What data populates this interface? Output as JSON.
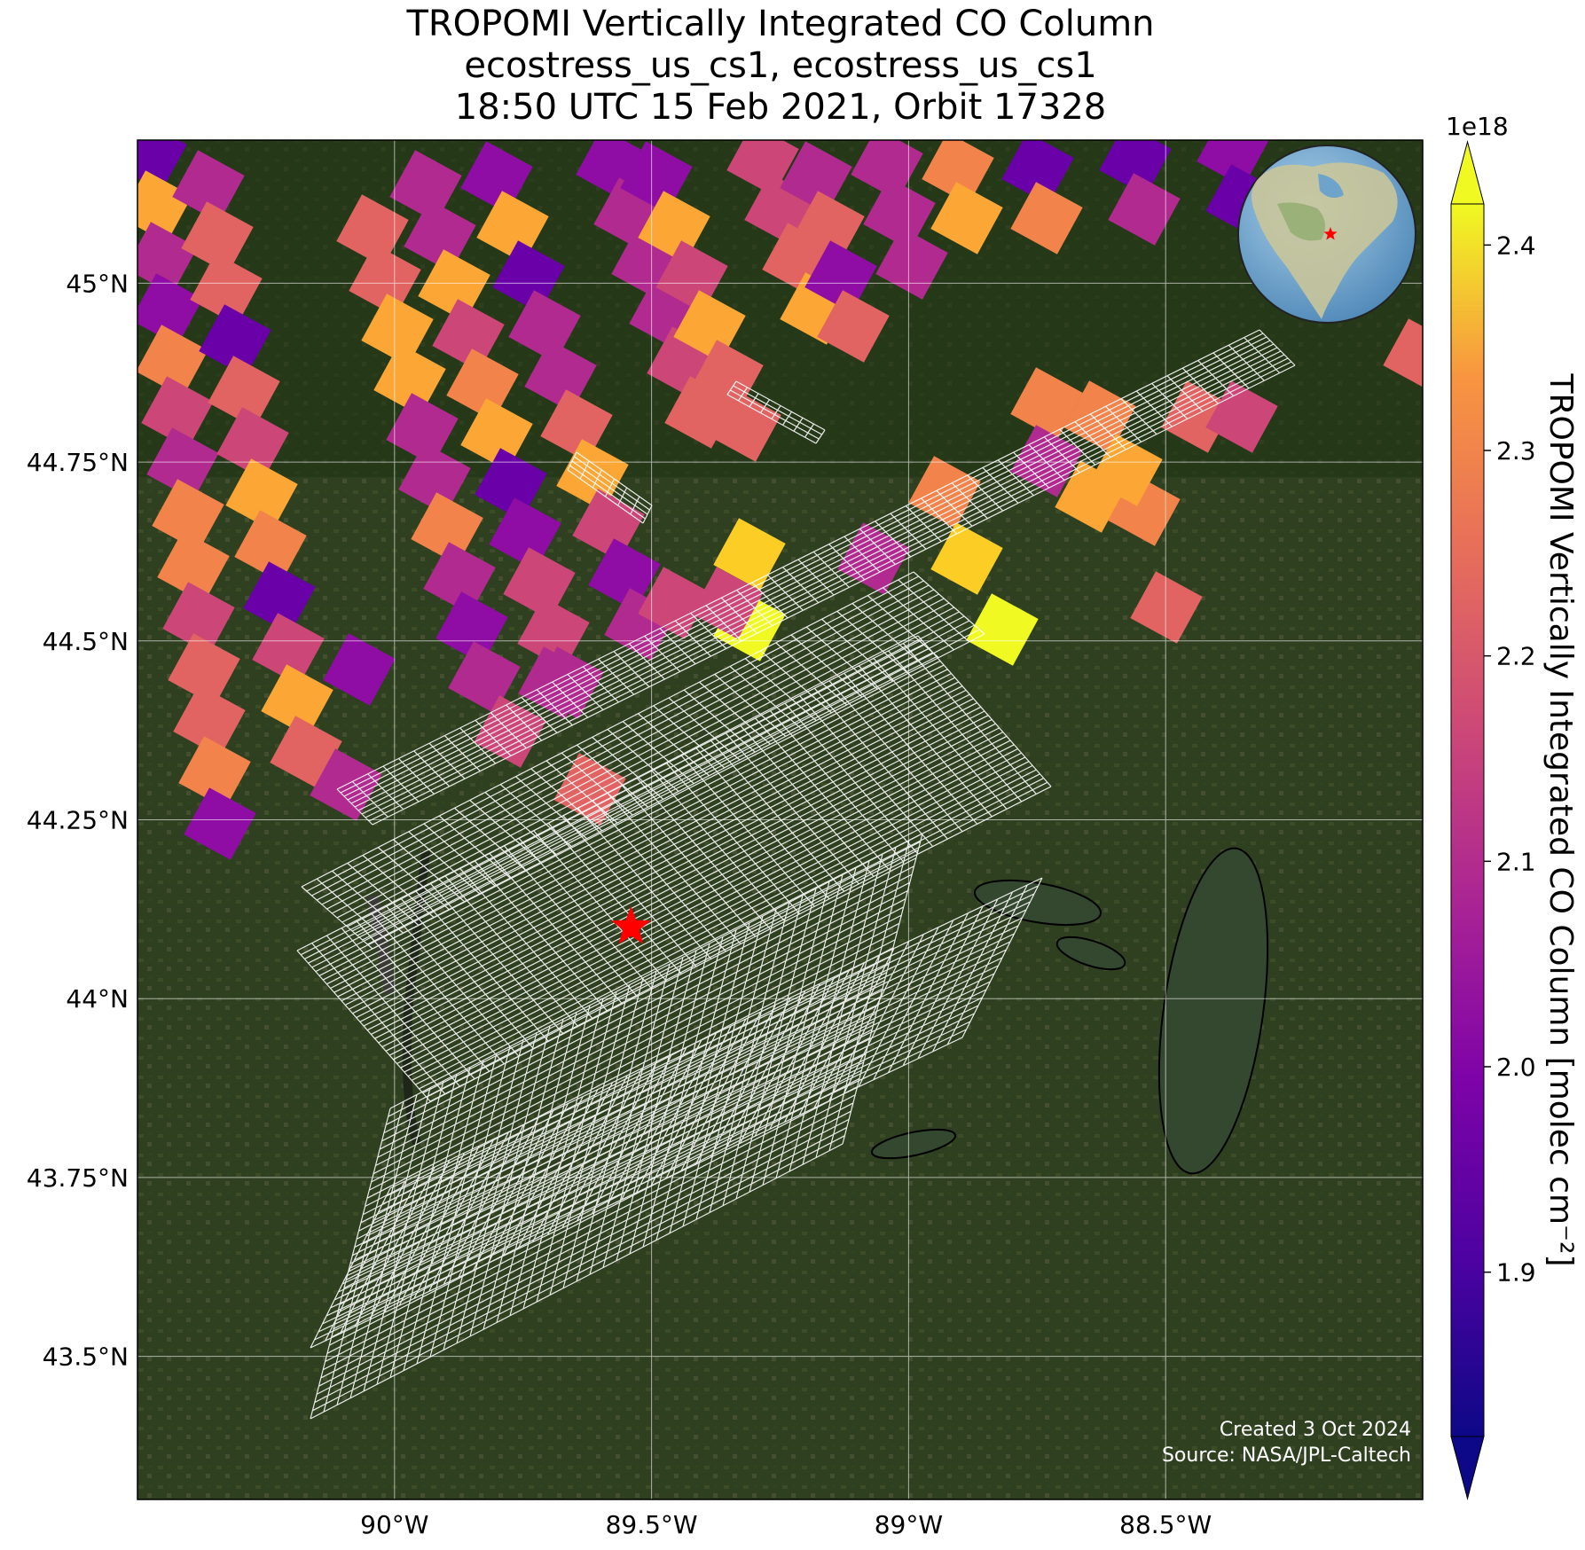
{
  "title": {
    "line1": "TROPOMI Vertically Integrated CO Column",
    "line2": "ecostress_us_cs1, ecostress_us_cs1",
    "line3": "18:50 UTC 15 Feb 2021, Orbit 17328"
  },
  "map": {
    "lon_range": [
      -90.5,
      -88.0
    ],
    "lat_range": [
      43.3,
      45.2
    ],
    "lat_ticks": [
      {
        "value": 45.0,
        "label": "45°N"
      },
      {
        "value": 44.75,
        "label": "44.75°N"
      },
      {
        "value": 44.5,
        "label": "44.5°N"
      },
      {
        "value": 44.25,
        "label": "44.25°N"
      },
      {
        "value": 44.0,
        "label": "44°N"
      },
      {
        "value": 43.75,
        "label": "43.75°N"
      },
      {
        "value": 43.5,
        "label": "43.5°N"
      }
    ],
    "lon_ticks": [
      {
        "value": -90.0,
        "label": "90°W"
      },
      {
        "value": -89.5,
        "label": "89.5°W"
      },
      {
        "value": -89.0,
        "label": "89°W"
      },
      {
        "value": -88.5,
        "label": "88.5°W"
      }
    ],
    "gridlines": true,
    "site_marker": {
      "lon": -89.54,
      "lat": 44.1,
      "color": "#ff0000",
      "icon": "red-star-icon"
    }
  },
  "colorbar": {
    "label": "TROPOMI Vertically Integrated CO Column [molec cm⁻²]",
    "multiplier": "1e18",
    "vmin": 1.82,
    "vmax": 2.42,
    "ticks": [
      {
        "value": 1.9,
        "label": "1.9"
      },
      {
        "value": 2.0,
        "label": "2.0"
      },
      {
        "value": 2.1,
        "label": "2.1"
      },
      {
        "value": 2.2,
        "label": "2.2"
      },
      {
        "value": 2.3,
        "label": "2.3"
      },
      {
        "value": 2.4,
        "label": "2.4"
      }
    ],
    "colormap": "plasma",
    "extend": "both"
  },
  "credits": {
    "created": "Created 3 Oct 2024",
    "source": "Source: NASA/JPL-Caltech"
  },
  "inset": {
    "icon": "globe-icon",
    "marker_icon": "red-star-icon"
  }
}
